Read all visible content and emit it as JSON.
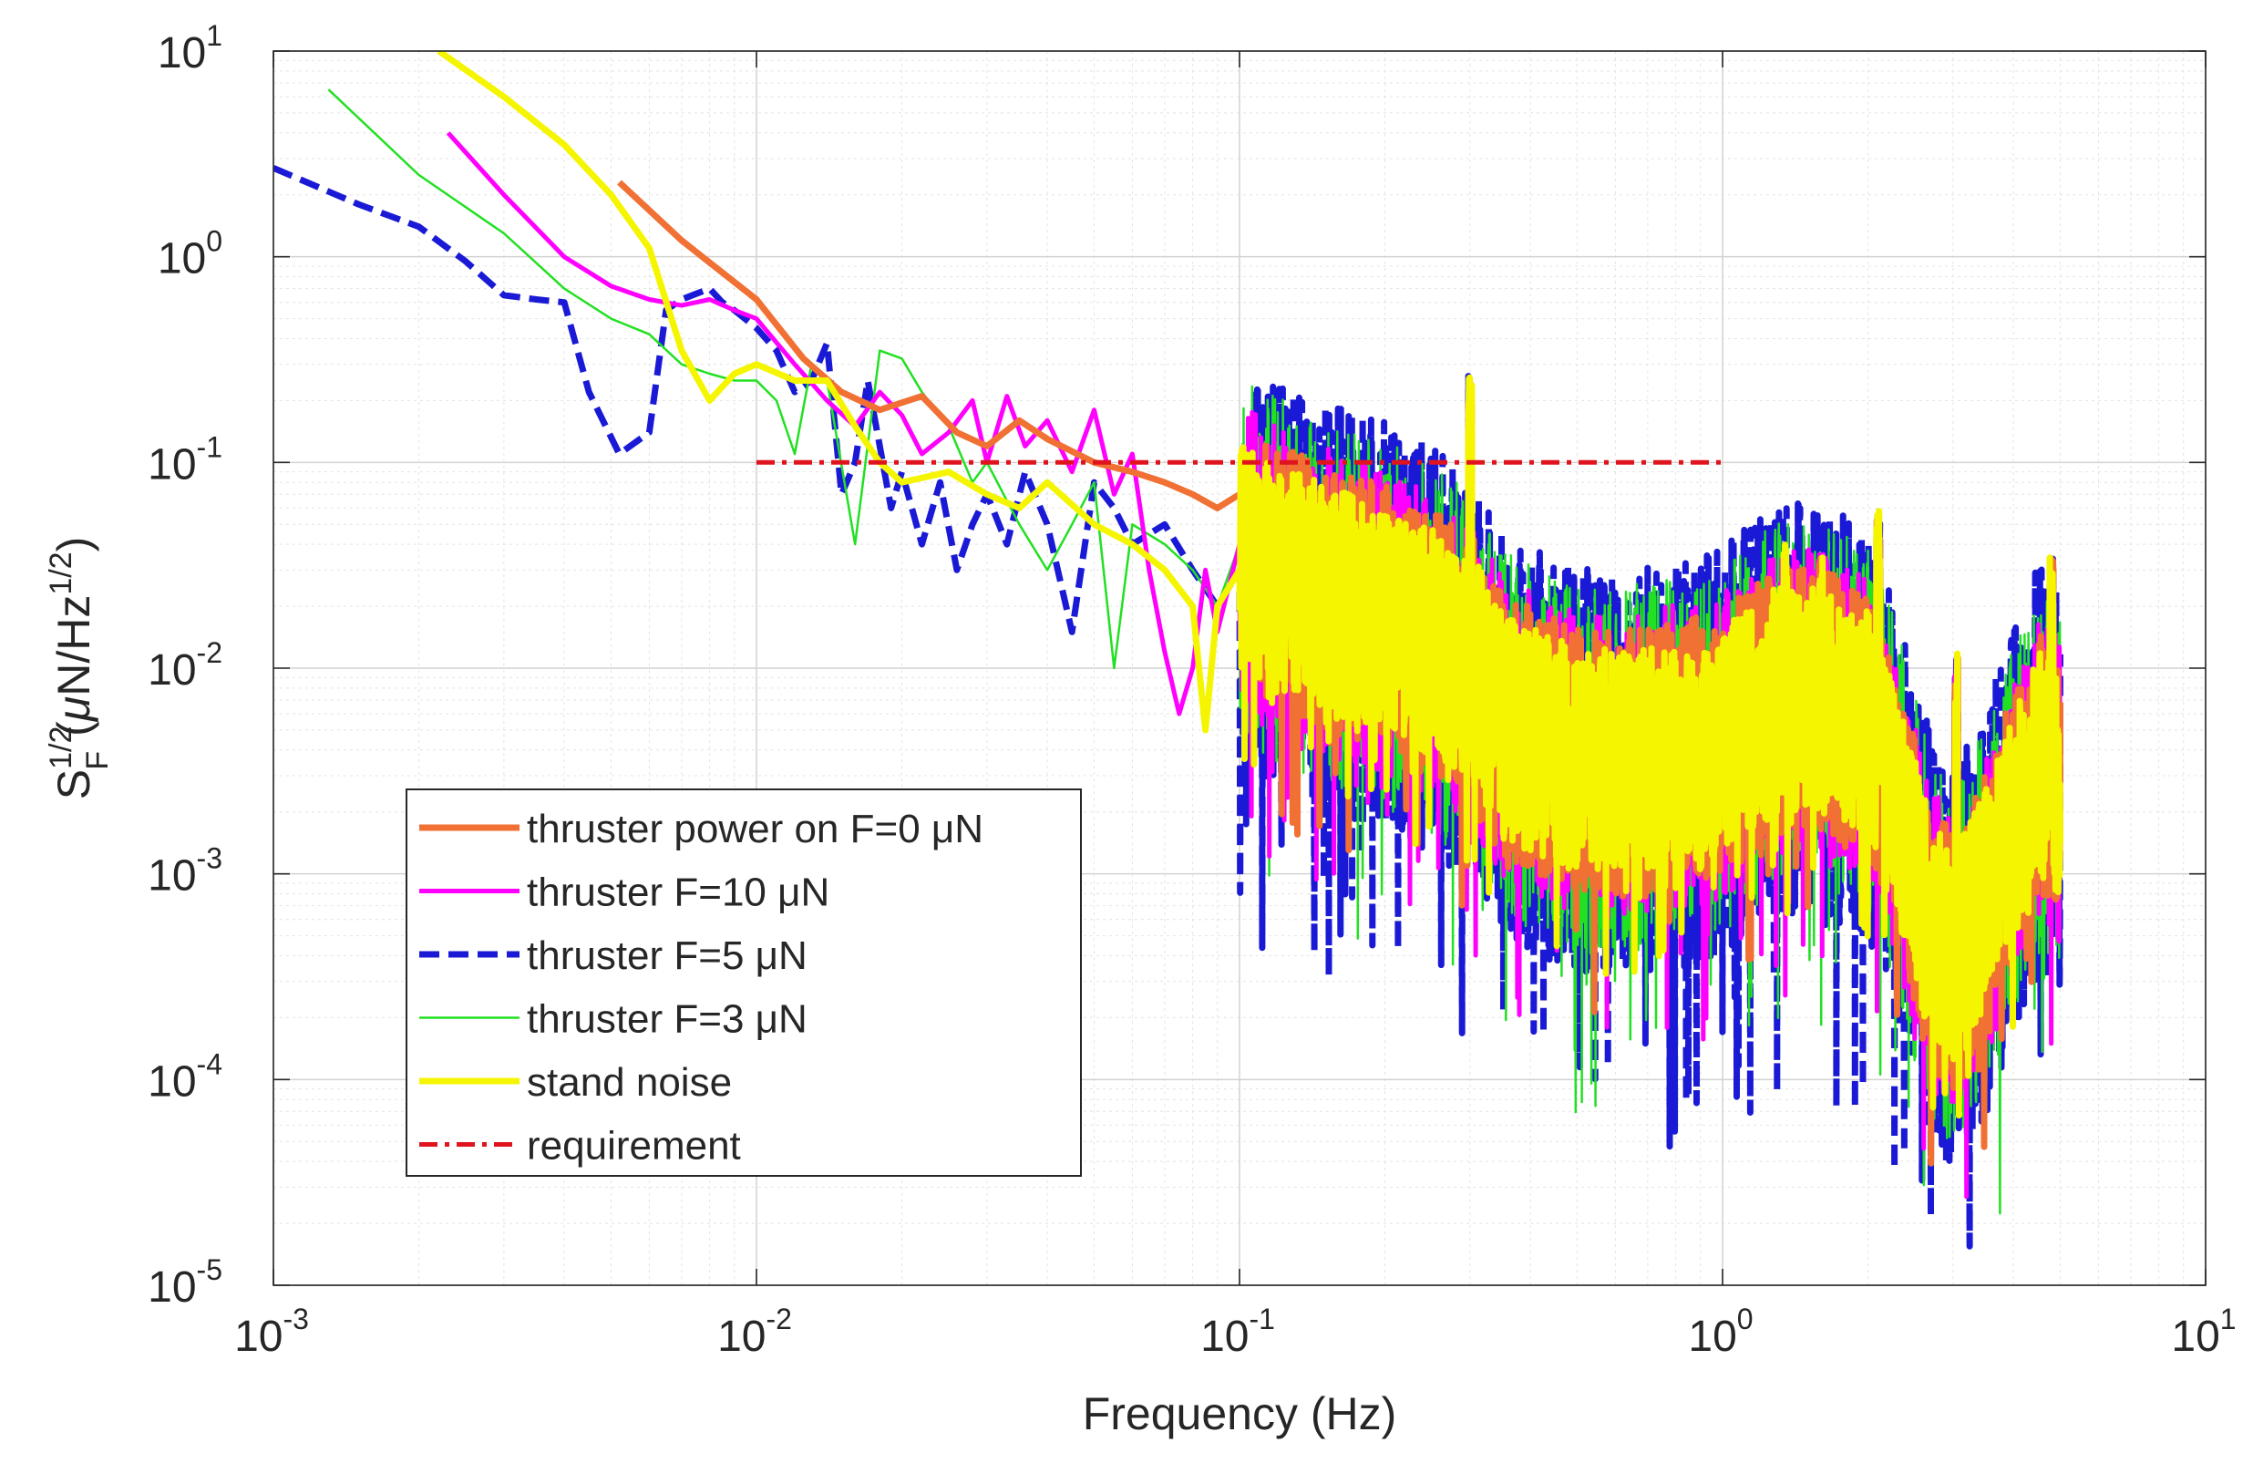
{
  "chart_data": {
    "type": "line",
    "scale": {
      "x": "log",
      "y": "log"
    },
    "xlim": [
      0.001,
      10
    ],
    "ylim": [
      1e-05,
      10
    ],
    "xlabel": "Frequency (Hz)",
    "ylabel": {
      "base": "S",
      "sup": "1/2",
      "sub": "F",
      "mu": "μ",
      "unit": "N/Hz",
      "unit_sup": "1/2",
      "open": "(",
      "close": ")"
    },
    "grid": true,
    "minor_grid": true,
    "x_ticks": [
      {
        "base": "10",
        "exp": "-3",
        "value": 0.001
      },
      {
        "base": "10",
        "exp": "-2",
        "value": 0.01
      },
      {
        "base": "10",
        "exp": "-1",
        "value": 0.1
      },
      {
        "base": "10",
        "exp": "0",
        "value": 1
      },
      {
        "base": "10",
        "exp": "1",
        "value": 10
      }
    ],
    "y_ticks": [
      {
        "base": "10",
        "exp": "-5",
        "value": 1e-05
      },
      {
        "base": "10",
        "exp": "-4",
        "value": 0.0001
      },
      {
        "base": "10",
        "exp": "-3",
        "value": 0.001
      },
      {
        "base": "10",
        "exp": "-2",
        "value": 0.01
      },
      {
        "base": "10",
        "exp": "-1",
        "value": 0.1
      },
      {
        "base": "10",
        "exp": "0",
        "value": 1
      },
      {
        "base": "10",
        "exp": "1",
        "value": 10
      }
    ],
    "legend_location": "lower-left",
    "series": [
      {
        "name": "thruster power on F=0 μN",
        "color": "#f07133",
        "dash": "solid",
        "weight": "heavy",
        "x": [
          0.0052,
          0.007,
          0.01,
          0.0125,
          0.015,
          0.018,
          0.022,
          0.026,
          0.03,
          0.035,
          0.04,
          0.05,
          0.06,
          0.07,
          0.08,
          0.09,
          0.1,
          0.11
        ],
        "y": [
          2.3,
          1.2,
          0.62,
          0.32,
          0.22,
          0.18,
          0.21,
          0.14,
          0.12,
          0.16,
          0.13,
          0.1,
          0.09,
          0.08,
          0.07,
          0.06,
          0.07,
          0.05
        ],
        "noise": {
          "f_start": 0.11,
          "f_end": 5.0,
          "count": 2200,
          "spread": 0.65,
          "seed": 11
        }
      },
      {
        "name": "thruster F=10 μN",
        "color": "#ff00ff",
        "dash": "solid",
        "weight": "medium",
        "x": [
          0.0023,
          0.003,
          0.004,
          0.005,
          0.006,
          0.007,
          0.008,
          0.009,
          0.01,
          0.012,
          0.014,
          0.016,
          0.018,
          0.02,
          0.022,
          0.025,
          0.028,
          0.03,
          0.033,
          0.036,
          0.04,
          0.045,
          0.05,
          0.055,
          0.06,
          0.065,
          0.07,
          0.075,
          0.08,
          0.085,
          0.09,
          0.1
        ],
        "y": [
          4.0,
          2.0,
          1.0,
          0.72,
          0.62,
          0.58,
          0.62,
          0.55,
          0.5,
          0.3,
          0.2,
          0.15,
          0.22,
          0.17,
          0.11,
          0.14,
          0.2,
          0.1,
          0.21,
          0.12,
          0.16,
          0.09,
          0.18,
          0.07,
          0.11,
          0.03,
          0.012,
          0.006,
          0.01,
          0.03,
          0.015,
          0.04
        ],
        "noise": {
          "f_start": 0.1,
          "f_end": 5.0,
          "count": 2200,
          "spread": 0.75,
          "seed": 23
        }
      },
      {
        "name": "thruster F=5 μN",
        "color": "#1a1ad6",
        "dash": "dashed",
        "weight": "heavy",
        "x": [
          0.001,
          0.0015,
          0.002,
          0.0025,
          0.003,
          0.0035,
          0.004,
          0.0045,
          0.0052,
          0.006,
          0.0065,
          0.007,
          0.008,
          0.0085,
          0.009,
          0.01,
          0.011,
          0.012,
          0.013,
          0.014,
          0.015,
          0.016,
          0.017,
          0.018,
          0.019,
          0.02,
          0.022,
          0.024,
          0.026,
          0.028,
          0.03,
          0.033,
          0.036,
          0.04,
          0.045,
          0.05,
          0.055,
          0.06,
          0.07,
          0.08,
          0.09,
          0.1
        ],
        "y": [
          2.7,
          1.8,
          1.4,
          0.95,
          0.65,
          0.62,
          0.6,
          0.22,
          0.11,
          0.14,
          0.55,
          0.62,
          0.7,
          0.6,
          0.55,
          0.45,
          0.35,
          0.22,
          0.25,
          0.38,
          0.07,
          0.1,
          0.25,
          0.12,
          0.06,
          0.09,
          0.04,
          0.08,
          0.03,
          0.05,
          0.07,
          0.04,
          0.09,
          0.05,
          0.015,
          0.08,
          0.06,
          0.04,
          0.05,
          0.03,
          0.02,
          0.03
        ],
        "noise": {
          "f_start": 0.1,
          "f_end": 5.0,
          "count": 2600,
          "spread": 1.0,
          "seed": 37
        }
      },
      {
        "name": "thruster F=3 μN",
        "color": "#22e022",
        "dash": "solid",
        "weight": "light",
        "x": [
          0.0013,
          0.002,
          0.003,
          0.004,
          0.005,
          0.006,
          0.007,
          0.008,
          0.009,
          0.01,
          0.011,
          0.012,
          0.013,
          0.014,
          0.016,
          0.018,
          0.02,
          0.022,
          0.025,
          0.028,
          0.03,
          0.035,
          0.04,
          0.045,
          0.05,
          0.055,
          0.06,
          0.07,
          0.08,
          0.09,
          0.1
        ],
        "y": [
          6.5,
          2.5,
          1.3,
          0.7,
          0.5,
          0.42,
          0.3,
          0.27,
          0.25,
          0.25,
          0.2,
          0.11,
          0.3,
          0.25,
          0.04,
          0.35,
          0.32,
          0.22,
          0.15,
          0.08,
          0.1,
          0.05,
          0.03,
          0.05,
          0.08,
          0.01,
          0.05,
          0.04,
          0.03,
          0.02,
          0.04
        ],
        "noise": {
          "f_start": 0.1,
          "f_end": 5.0,
          "count": 2400,
          "spread": 0.9,
          "seed": 53
        }
      },
      {
        "name": "stand noise",
        "color": "#f5f500",
        "dash": "solid",
        "weight": "heavy",
        "x": [
          0.0022,
          0.003,
          0.004,
          0.005,
          0.006,
          0.007,
          0.008,
          0.009,
          0.01,
          0.012,
          0.014,
          0.016,
          0.018,
          0.02,
          0.025,
          0.03,
          0.035,
          0.04,
          0.05,
          0.06,
          0.07,
          0.08,
          0.085,
          0.09,
          0.1
        ],
        "y": [
          10.0,
          6.0,
          3.5,
          2.0,
          1.1,
          0.35,
          0.2,
          0.27,
          0.3,
          0.25,
          0.25,
          0.15,
          0.1,
          0.08,
          0.09,
          0.07,
          0.06,
          0.08,
          0.05,
          0.04,
          0.03,
          0.02,
          0.005,
          0.02,
          0.03
        ],
        "noise": {
          "f_start": 0.1,
          "f_end": 5.0,
          "count": 2600,
          "spread": 0.55,
          "seed": 71
        }
      },
      {
        "name": "requirement",
        "color": "#e0141e",
        "dash": "dashdot",
        "weight": "medium",
        "x": [
          0.01,
          1.0
        ],
        "y": [
          0.1,
          0.1
        ]
      }
    ],
    "noise_profile": {
      "f": [
        0.1,
        0.15,
        0.2,
        0.3,
        0.35,
        0.5,
        0.7,
        1.0,
        1.3,
        1.6,
        2.0,
        2.3,
        2.7,
        3.0,
        3.5,
        4.0,
        4.5,
        5.0
      ],
      "level": [
        0.04,
        0.025,
        0.02,
        0.012,
        0.006,
        0.004,
        0.004,
        0.005,
        0.008,
        0.008,
        0.006,
        0.0025,
        0.0006,
        0.0004,
        0.0008,
        0.002,
        0.004,
        0.003
      ]
    },
    "peaks": [
      {
        "f": 0.3,
        "y": 0.27
      },
      {
        "f": 1.35,
        "y": 0.04
      },
      {
        "f": 1.6,
        "y": 0.035
      },
      {
        "f": 2.1,
        "y": 0.06
      },
      {
        "f": 3.05,
        "y": 0.012
      },
      {
        "f": 4.8,
        "y": 0.035
      }
    ]
  }
}
